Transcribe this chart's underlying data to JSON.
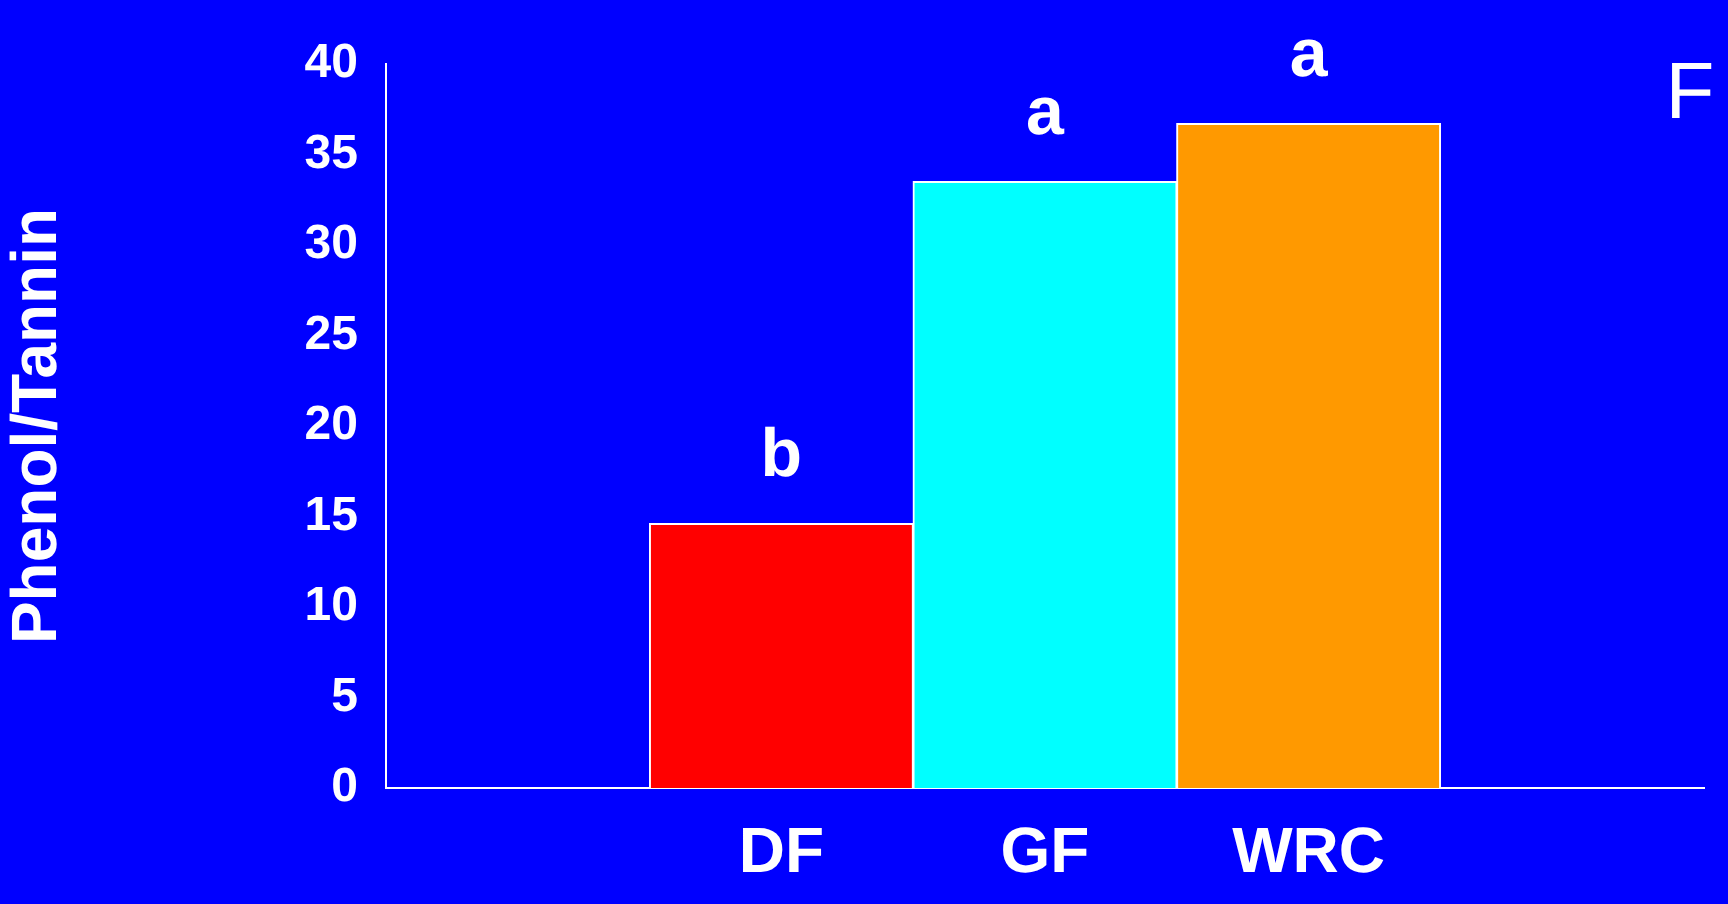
{
  "chart_data": {
    "type": "bar",
    "ylabel": "Phenol/Tannin",
    "categories": [
      null,
      "DF",
      "GF",
      "WRC",
      null
    ],
    "series": [
      {
        "colors": [
          "#ff0000",
          "#ff0000",
          "#00ffff",
          "#ff9900",
          "#ff9900"
        ],
        "values": [
          null,
          14.6,
          33.5,
          36.7,
          null
        ]
      }
    ],
    "ylim": [
      0,
      40
    ],
    "yticks": [
      0,
      5,
      10,
      15,
      20,
      25,
      30,
      35,
      40
    ],
    "grid": false,
    "legend": false,
    "annotations": [
      {
        "text": "b",
        "x": "DF",
        "y": 14.6
      },
      {
        "text": "a",
        "x": "GF",
        "y": 33.5
      },
      {
        "text": "a",
        "x": "WRC",
        "y": 36.7
      },
      "F"
    ]
  }
}
